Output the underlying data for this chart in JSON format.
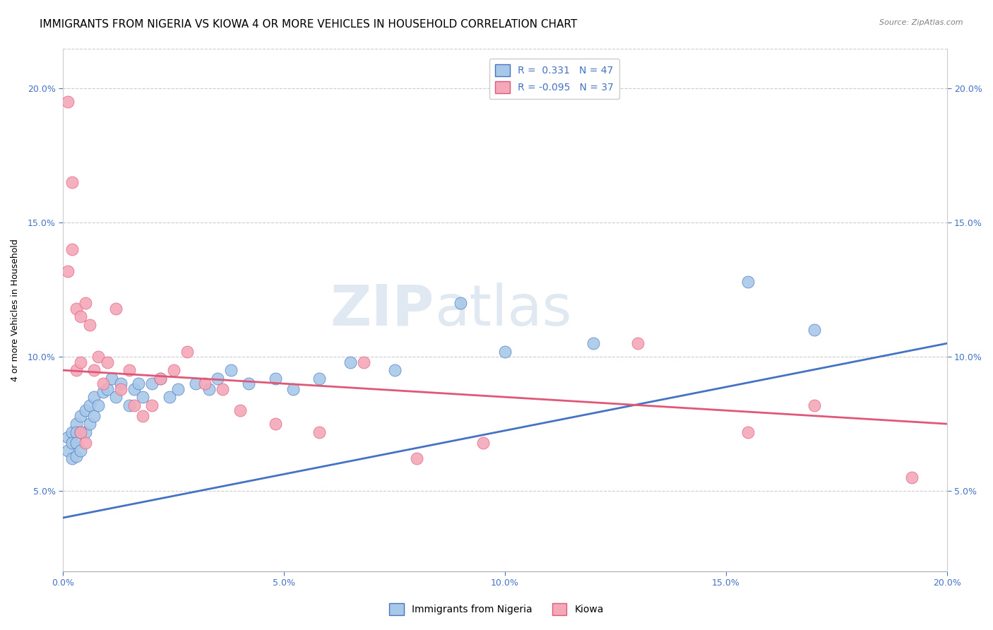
{
  "title": "IMMIGRANTS FROM NIGERIA VS KIOWA 4 OR MORE VEHICLES IN HOUSEHOLD CORRELATION CHART",
  "source": "Source: ZipAtlas.com",
  "ylabel": "4 or more Vehicles in Household",
  "xlim": [
    0.0,
    0.2
  ],
  "ylim": [
    0.02,
    0.215
  ],
  "xticks": [
    0.0,
    0.05,
    0.1,
    0.15,
    0.2
  ],
  "yticks": [
    0.05,
    0.1,
    0.15,
    0.2
  ],
  "xticklabels": [
    "0.0%",
    "5.0%",
    "10.0%",
    "15.0%",
    "20.0%"
  ],
  "yticklabels": [
    "5.0%",
    "10.0%",
    "15.0%",
    "20.0%"
  ],
  "legend_r1": "R =  0.331",
  "legend_n1": "N = 47",
  "legend_r2": "R = -0.095",
  "legend_n2": "N = 37",
  "color_blue": "#a8c8e8",
  "color_pink": "#f4a8b8",
  "line_blue": "#4472c4",
  "line_pink": "#e05878",
  "watermark": "ZIPatlas",
  "blue_x": [
    0.001,
    0.001,
    0.002,
    0.002,
    0.002,
    0.003,
    0.003,
    0.003,
    0.003,
    0.004,
    0.004,
    0.004,
    0.005,
    0.005,
    0.006,
    0.006,
    0.007,
    0.007,
    0.008,
    0.009,
    0.01,
    0.011,
    0.012,
    0.013,
    0.015,
    0.016,
    0.017,
    0.018,
    0.02,
    0.022,
    0.024,
    0.026,
    0.03,
    0.033,
    0.035,
    0.038,
    0.042,
    0.048,
    0.052,
    0.058,
    0.065,
    0.075,
    0.09,
    0.1,
    0.12,
    0.155,
    0.17
  ],
  "blue_y": [
    0.07,
    0.065,
    0.072,
    0.068,
    0.062,
    0.075,
    0.072,
    0.068,
    0.063,
    0.078,
    0.072,
    0.065,
    0.08,
    0.072,
    0.082,
    0.075,
    0.085,
    0.078,
    0.082,
    0.087,
    0.088,
    0.092,
    0.085,
    0.09,
    0.082,
    0.088,
    0.09,
    0.085,
    0.09,
    0.092,
    0.085,
    0.088,
    0.09,
    0.088,
    0.092,
    0.095,
    0.09,
    0.092,
    0.088,
    0.092,
    0.098,
    0.095,
    0.12,
    0.102,
    0.105,
    0.128,
    0.11
  ],
  "pink_x": [
    0.001,
    0.001,
    0.002,
    0.002,
    0.003,
    0.003,
    0.004,
    0.004,
    0.004,
    0.005,
    0.005,
    0.006,
    0.007,
    0.008,
    0.009,
    0.01,
    0.012,
    0.013,
    0.015,
    0.016,
    0.018,
    0.02,
    0.022,
    0.025,
    0.028,
    0.032,
    0.036,
    0.04,
    0.048,
    0.058,
    0.068,
    0.08,
    0.095,
    0.13,
    0.155,
    0.17,
    0.192
  ],
  "pink_y": [
    0.132,
    0.195,
    0.165,
    0.14,
    0.118,
    0.095,
    0.115,
    0.098,
    0.072,
    0.12,
    0.068,
    0.112,
    0.095,
    0.1,
    0.09,
    0.098,
    0.118,
    0.088,
    0.095,
    0.082,
    0.078,
    0.082,
    0.092,
    0.095,
    0.102,
    0.09,
    0.088,
    0.08,
    0.075,
    0.072,
    0.098,
    0.062,
    0.068,
    0.105,
    0.072,
    0.082,
    0.055
  ],
  "blue_line_x0": 0.0,
  "blue_line_y0": 0.04,
  "blue_line_x1": 0.2,
  "blue_line_y1": 0.105,
  "pink_line_x0": 0.0,
  "pink_line_y0": 0.095,
  "pink_line_x1": 0.2,
  "pink_line_y1": 0.075,
  "title_fontsize": 11,
  "axis_fontsize": 9,
  "label_fontsize": 9
}
